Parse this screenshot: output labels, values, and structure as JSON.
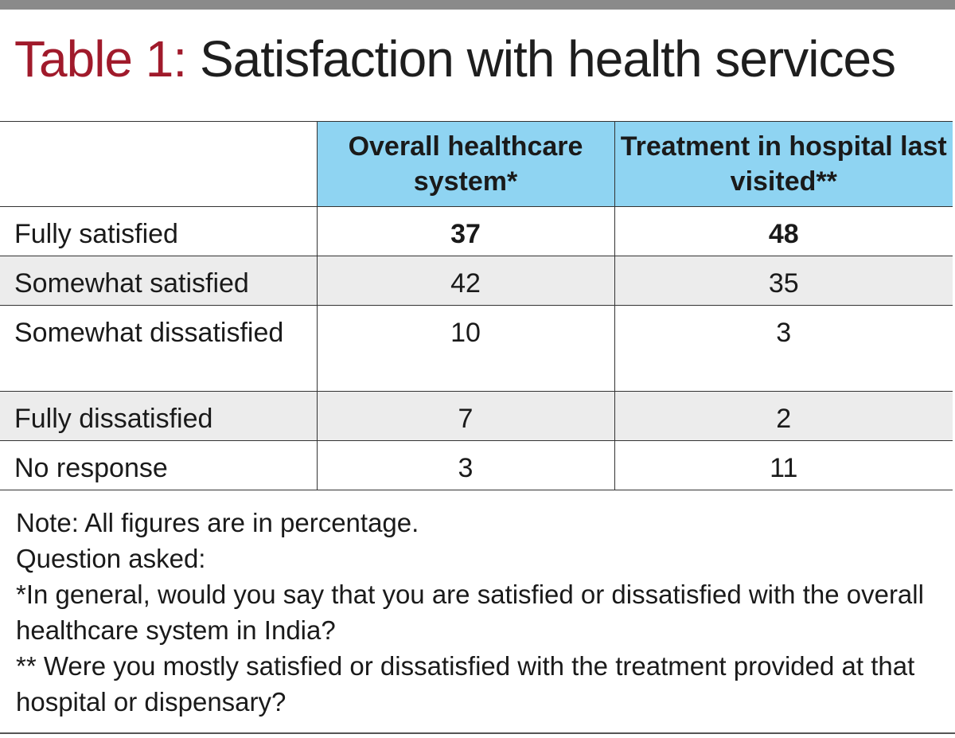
{
  "title": {
    "prefix": "Table 1:",
    "main": "Satisfaction with health services"
  },
  "table": {
    "headers": [
      "",
      "Overall healthcare system*",
      "Treatment in hospital last visited**"
    ],
    "rows": [
      {
        "label": "Fully satisfied",
        "values": [
          "37",
          "48"
        ]
      },
      {
        "label": "Somewhat satisfied",
        "values": [
          "42",
          "35"
        ]
      },
      {
        "label": "Somewhat dissatisfied",
        "values": [
          "10",
          "3"
        ]
      },
      {
        "label": "Fully dissatisfied",
        "values": [
          "7",
          "2"
        ]
      },
      {
        "label": "No response",
        "values": [
          "3",
          "11"
        ]
      }
    ]
  },
  "notes": [
    "Note: All figures are in percentage.",
    "Question asked:",
    "*In general, would you say that you are satisfied or dissatisfied with the overall healthcare system in India?",
    "** Were you mostly satisfied or dissatisfied with the treatment provided at that hospital or dispensary?"
  ],
  "colors": {
    "title_prefix": "#a01a2b",
    "header_fill": "#8fd4f2",
    "row_shade": "#ececec",
    "top_bar": "#8a8a8a"
  }
}
